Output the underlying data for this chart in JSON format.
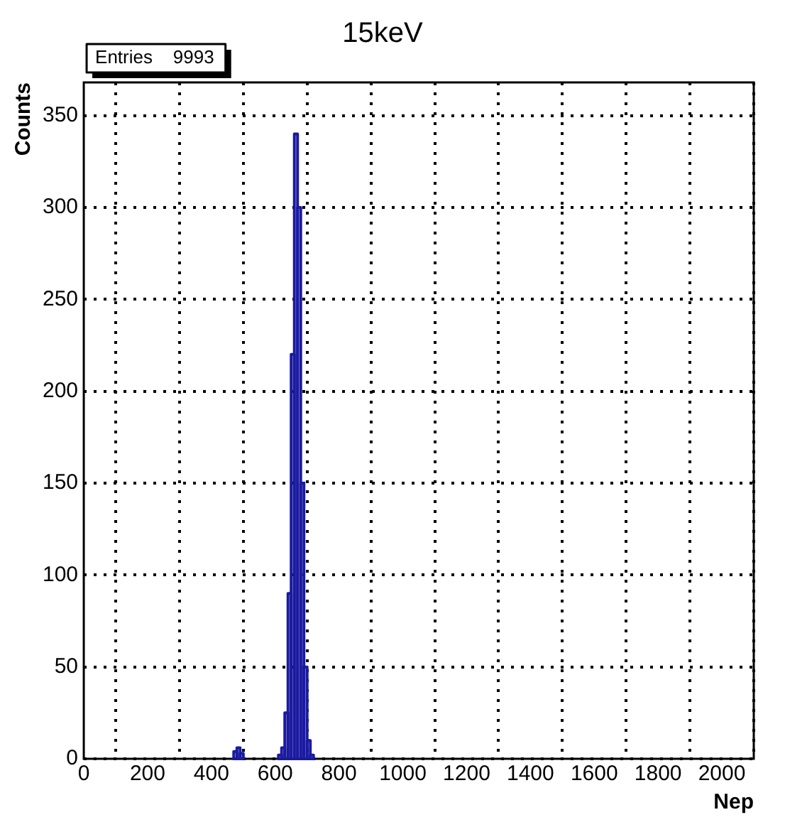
{
  "chart_data": {
    "type": "histogram",
    "title": "15keV",
    "xlabel": "Nep",
    "ylabel": "Counts",
    "bins": [
      470,
      480,
      490,
      500,
      610,
      620,
      630,
      640,
      650,
      660,
      670,
      680,
      690,
      700,
      710,
      720
    ],
    "values": [
      4,
      6,
      3,
      0,
      2,
      6,
      25,
      90,
      220,
      340,
      300,
      150,
      50,
      10,
      2
    ],
    "color": "#1a1aa0",
    "xlim": [
      0,
      2100
    ],
    "xticks": [
      0,
      200,
      400,
      600,
      800,
      1000,
      1200,
      1400,
      1600,
      1800,
      2000
    ],
    "ylim": [
      0,
      368
    ],
    "yticks": [
      0,
      50,
      100,
      150,
      200,
      250,
      300,
      350
    ],
    "grid": true,
    "legend": false,
    "annotations": [
      "Entries    9993"
    ]
  }
}
